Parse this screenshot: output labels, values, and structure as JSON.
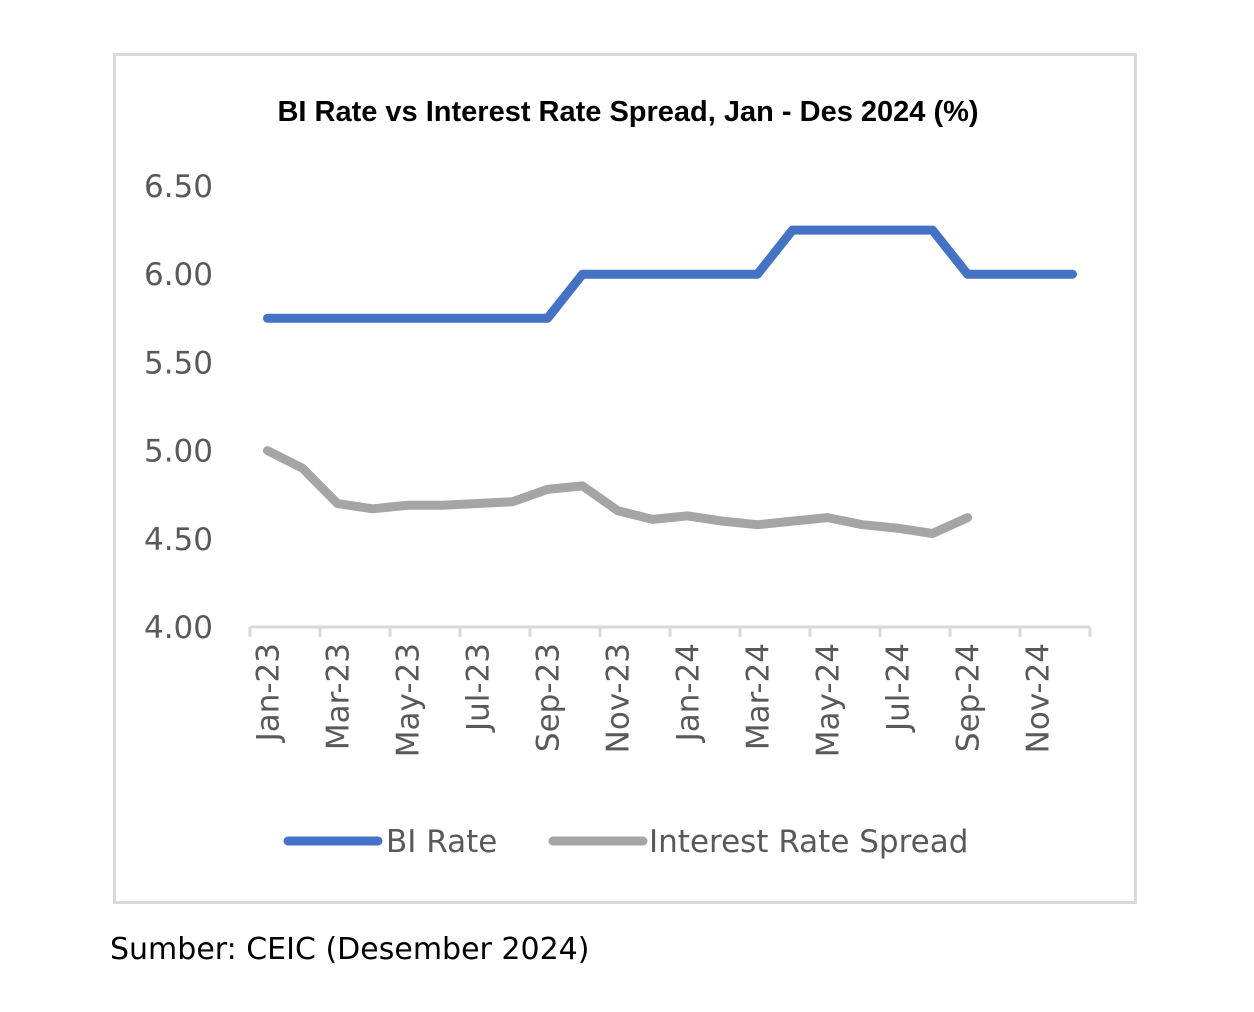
{
  "chart_data": {
    "type": "line",
    "title": "BI Rate vs Interest Rate Spread, Jan - Des 2024 (%)",
    "xlabel": "",
    "ylabel": "",
    "ylim": [
      4.0,
      6.5
    ],
    "yticks": [
      "4.00",
      "4.50",
      "5.00",
      "5.50",
      "6.00",
      "6.50"
    ],
    "x": [
      "Jan-23",
      "Feb-23",
      "Mar-23",
      "Apr-23",
      "May-23",
      "Jun-23",
      "Jul-23",
      "Aug-23",
      "Sep-23",
      "Oct-23",
      "Nov-23",
      "Dec-23",
      "Jan-24",
      "Feb-24",
      "Mar-24",
      "Apr-24",
      "May-24",
      "Jun-24",
      "Jul-24",
      "Aug-24",
      "Sep-24",
      "Oct-24",
      "Nov-24",
      "Dec-24"
    ],
    "xtick_labels": [
      "Jan-23",
      "Mar-23",
      "May-23",
      "Jul-23",
      "Sep-23",
      "Nov-23",
      "Jan-24",
      "Mar-24",
      "May-24",
      "Jul-24",
      "Sep-24",
      "Nov-24"
    ],
    "grid": false,
    "legend_position": "bottom",
    "series": [
      {
        "name": "BI Rate",
        "color": "#4472c4",
        "values": [
          5.75,
          5.75,
          5.75,
          5.75,
          5.75,
          5.75,
          5.75,
          5.75,
          5.75,
          6.0,
          6.0,
          6.0,
          6.0,
          6.0,
          6.0,
          6.25,
          6.25,
          6.25,
          6.25,
          6.25,
          6.0,
          6.0,
          6.0,
          6.0
        ]
      },
      {
        "name": "Interest Rate Spread",
        "color": "#a5a5a5",
        "values": [
          5.0,
          4.9,
          4.7,
          4.67,
          4.69,
          4.69,
          4.7,
          4.71,
          4.78,
          4.8,
          4.66,
          4.61,
          4.63,
          4.6,
          4.58,
          4.6,
          4.62,
          4.58,
          4.56,
          4.53,
          4.62,
          null,
          null,
          null
        ]
      }
    ]
  },
  "source": "Sumber: CEIC (Desember 2024)"
}
